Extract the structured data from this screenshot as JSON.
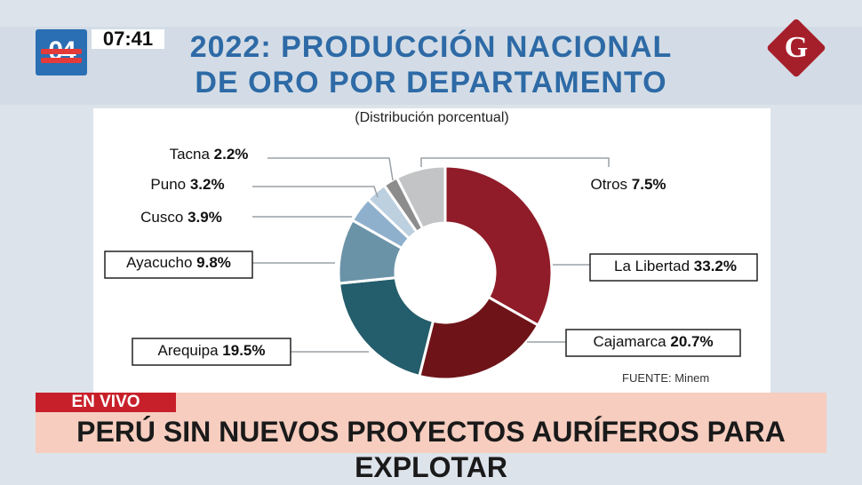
{
  "header": {
    "channel_number": "04",
    "time": "07:41",
    "title_line1": "2022: PRODUCCIÓN NACIONAL",
    "title_line2": "DE ORO POR DEPARTAMENTO",
    "brand_letter": "G"
  },
  "chart_data": {
    "type": "pie",
    "donut": true,
    "subtitle": "(Distribución porcentual)",
    "source": "FUENTE: Minem",
    "slices": [
      {
        "name": "La Libertad",
        "value": 33.2,
        "label": "33.2%",
        "color": "#8f1c28"
      },
      {
        "name": "Cajamarca",
        "value": 20.7,
        "label": "20.7%",
        "color": "#6e1419"
      },
      {
        "name": "Arequipa",
        "value": 19.5,
        "label": "19.5%",
        "color": "#245d6b"
      },
      {
        "name": "Ayacucho",
        "value": 9.8,
        "label": "9.8%",
        "color": "#6b93a7"
      },
      {
        "name": "Cusco",
        "value": 3.9,
        "label": "3.9%",
        "color": "#8fb0cc"
      },
      {
        "name": "Puno",
        "value": 3.2,
        "label": "3.2%",
        "color": "#bdd0e0"
      },
      {
        "name": "Tacna",
        "value": 2.2,
        "label": "2.2%",
        "color": "#8c8c8c"
      },
      {
        "name": "Otros",
        "value": 7.5,
        "label": "7.5%",
        "color": "#c2c4c6"
      }
    ]
  },
  "ticker": {
    "live_label": "EN VIVO",
    "headline": "PERÚ SIN NUEVOS PROYECTOS AURÍFEROS PARA EXPLOTAR"
  }
}
